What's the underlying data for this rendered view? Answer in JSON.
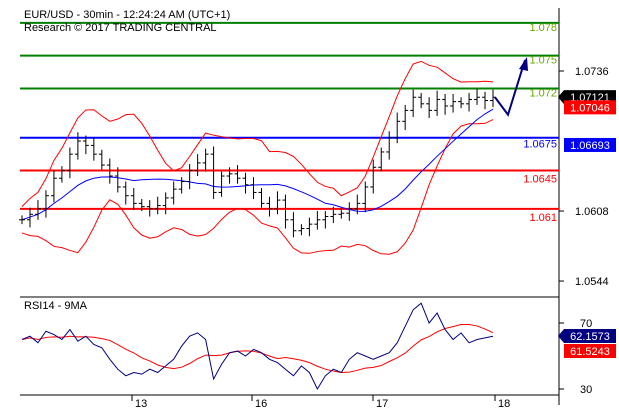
{
  "header": {
    "line1": "EUR/USD - 30min - 12:24:24 AM (UTC+1)",
    "line2": "Research © 2017 TRADING CENTRAL"
  },
  "colors": {
    "resistance": "#008000",
    "pivot": "#0000ff",
    "support": "#ff0000",
    "arrow": "#000080",
    "price": "#000000",
    "rsi": "#000080",
    "rsi_ma": "#ff0000"
  },
  "chart_data": [
    {
      "type": "line",
      "title": "EUR/USD - 30min",
      "ylim": [
        1.052,
        1.0805
      ],
      "y_ticks": [
        "1.0736",
        "1.0608",
        "1.0544"
      ],
      "x_ticks": [
        "13",
        "16",
        "17",
        "18"
      ],
      "levels": [
        {
          "label": "1.078",
          "value": 1.078,
          "kind": "resistance"
        },
        {
          "label": "1.075",
          "value": 1.075,
          "kind": "resistance"
        },
        {
          "label": "1.072",
          "value": 1.072,
          "kind": "resistance"
        },
        {
          "label": "1.0675",
          "value": 1.0675,
          "kind": "pivot"
        },
        {
          "label": "1.0645",
          "value": 1.0645,
          "kind": "support"
        },
        {
          "label": "1.061",
          "value": 1.061,
          "kind": "support"
        }
      ],
      "badges": [
        {
          "label": "1.07121",
          "color": "#000000",
          "value": 1.07121
        },
        {
          "label": "1.07046",
          "color": "#ff0000",
          "value": 1.07046
        },
        {
          "label": "1.06693",
          "color": "#0000ff",
          "value": 1.06693
        }
      ],
      "closes": [
        1.06,
        1.0605,
        1.061,
        1.0622,
        1.0638,
        1.0645,
        1.066,
        1.0672,
        1.0668,
        1.066,
        1.065,
        1.064,
        1.063,
        1.0622,
        1.0615,
        1.0612,
        1.061,
        1.0613,
        1.062,
        1.0628,
        1.0635,
        1.0645,
        1.0652,
        1.066,
        1.0625,
        1.064,
        1.0642,
        1.0638,
        1.0632,
        1.0625,
        1.0615,
        1.061,
        1.0618,
        1.06,
        1.059,
        1.0592,
        1.0596,
        1.06,
        1.0603,
        1.0605,
        1.0606,
        1.061,
        1.0615,
        1.063,
        1.0648,
        1.0662,
        1.0675,
        1.069,
        1.07,
        1.0712,
        1.0706,
        1.07,
        1.071,
        1.0704,
        1.0708,
        1.0706,
        1.071,
        1.0712,
        1.0709,
        1.0712
      ],
      "forecast": [
        1.0712,
        1.0696,
        1.0746
      ]
    },
    {
      "type": "line",
      "title": "RSI14 - 9MA",
      "ylim": [
        25,
        85
      ],
      "y_ticks": [
        "70",
        "30"
      ],
      "badges": [
        {
          "label": "62.1573",
          "color": "#000080",
          "value": 62.1573
        },
        {
          "label": "61.5243",
          "color": "#ff0000",
          "value": 61.5243
        }
      ],
      "rsi": [
        60,
        62,
        58,
        65,
        63,
        60,
        66,
        59,
        62,
        57,
        55,
        48,
        42,
        38,
        40,
        39,
        42,
        40,
        44,
        48,
        56,
        62,
        64,
        60,
        36,
        45,
        52,
        53,
        50,
        54,
        52,
        48,
        46,
        42,
        38,
        44,
        40,
        30,
        38,
        42,
        40,
        48,
        52,
        50,
        48,
        50,
        52,
        58,
        68,
        78,
        82,
        70,
        76,
        66,
        60,
        64,
        58,
        60,
        61,
        62
      ]
    }
  ]
}
